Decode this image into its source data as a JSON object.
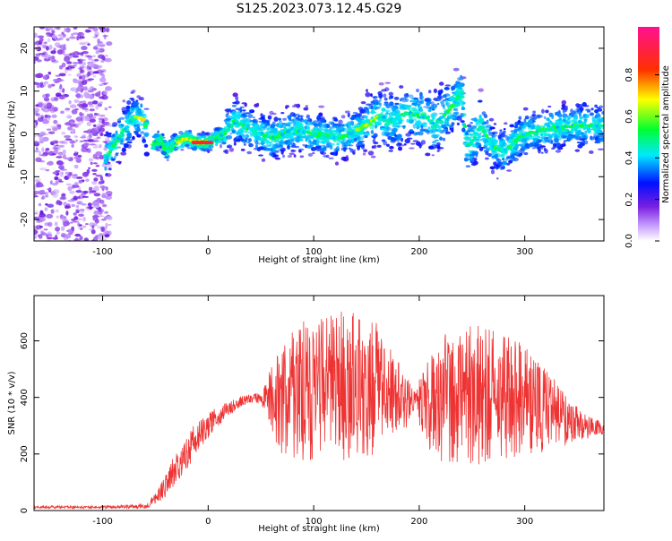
{
  "title": "S125.2023.073.12.45.G29",
  "chart_data": [
    {
      "type": "heatmap",
      "xlabel": "Height of straight line (km)",
      "ylabel": "Frequency (Hz)",
      "xlim": [
        -165,
        375
      ],
      "ylim": [
        -25,
        25
      ],
      "x_ticks": [
        -100,
        0,
        100,
        200,
        300
      ],
      "y_ticks": [
        -20,
        -10,
        0,
        10,
        20
      ],
      "colorbar": {
        "label": "Normalized spectral amplitude",
        "range": [
          0,
          1
        ],
        "ticks": [
          "0.0",
          "0.2",
          "0.4",
          "0.6",
          "0.8"
        ],
        "colors": [
          "#ffffff",
          "#8a2be2",
          "#0000ff",
          "#00ffff",
          "#00ff00",
          "#ffff00",
          "#ff0000",
          "#ff1493"
        ]
      },
      "ridge": {
        "x": [
          -95,
          -80,
          -70,
          -60,
          -55,
          -45,
          -40,
          -30,
          -20,
          -10,
          0,
          15,
          25,
          40,
          60,
          80,
          100,
          125,
          150,
          160,
          175,
          190,
          205,
          215,
          230,
          240,
          245,
          250,
          258,
          270,
          280,
          300,
          320,
          350,
          375
        ],
        "y": [
          -5,
          1,
          4,
          3,
          -3,
          -1,
          -4,
          -2,
          -1,
          -2,
          -2,
          0,
          3,
          1,
          -1,
          1,
          0,
          -1,
          2,
          4,
          3,
          5,
          4,
          2,
          6,
          10,
          -3,
          -2,
          2,
          -3,
          -4,
          0,
          1,
          2,
          2
        ]
      }
    },
    {
      "type": "line",
      "xlabel": "Height of straight line (km)",
      "ylabel": "SNR (10 * v/v)",
      "xlim": [
        -165,
        375
      ],
      "ylim": [
        0,
        760
      ],
      "x_ticks": [
        -100,
        0,
        100,
        200,
        300
      ],
      "y_ticks": [
        0,
        200,
        400,
        600
      ],
      "color": "#ee3333",
      "series": [
        {
          "name": "",
          "x": [
            -165,
            -100,
            -60,
            -50,
            -40,
            -30,
            -20,
            -10,
            0,
            10,
            20,
            30,
            40,
            50,
            60,
            70,
            80,
            90,
            100,
            110,
            120,
            130,
            140,
            150,
            160,
            170,
            180,
            190,
            195,
            200,
            210,
            220,
            230,
            240,
            250,
            260,
            270,
            280,
            290,
            300,
            310,
            320,
            330,
            340,
            350,
            360,
            375
          ],
          "y": [
            12,
            12,
            15,
            40,
            90,
            160,
            215,
            260,
            300,
            335,
            360,
            385,
            395,
            400,
            390,
            400,
            410,
            420,
            420,
            430,
            430,
            440,
            440,
            430,
            440,
            420,
            400,
            380,
            390,
            385,
            390,
            400,
            410,
            420,
            420,
            415,
            410,
            405,
            395,
            385,
            375,
            355,
            335,
            320,
            305,
            295,
            285
          ],
          "spread": [
            5,
            5,
            8,
            20,
            40,
            60,
            70,
            50,
            45,
            35,
            25,
            20,
            15,
            20,
            120,
            200,
            230,
            260,
            250,
            260,
            270,
            270,
            260,
            250,
            230,
            180,
            130,
            80,
            30,
            80,
            180,
            230,
            250,
            250,
            260,
            250,
            240,
            230,
            220,
            200,
            180,
            150,
            120,
            90,
            60,
            40,
            25
          ]
        }
      ]
    }
  ]
}
